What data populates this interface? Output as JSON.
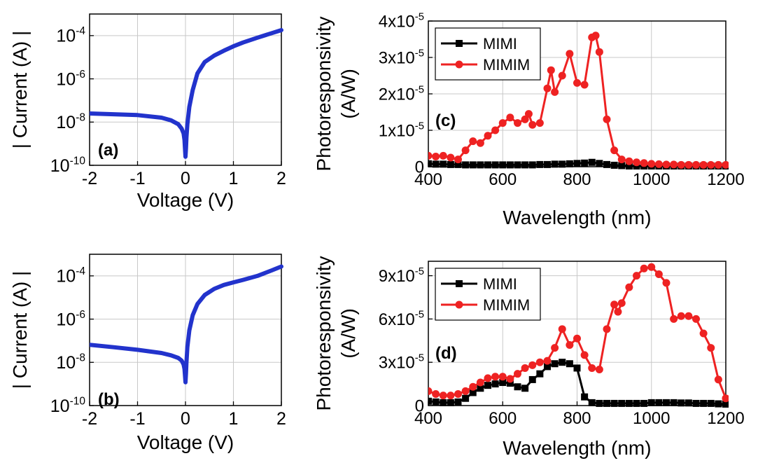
{
  "chart_data": [
    {
      "id": "a",
      "type": "line",
      "panel_label": "(a)",
      "xlabel": "Voltage (V)",
      "ylabel": "| Current (A) |",
      "yscale": "log",
      "xlim": [
        -2,
        2
      ],
      "ylim": [
        1e-10,
        0.001
      ],
      "x_ticks": [
        -2,
        -1,
        0,
        1,
        2
      ],
      "x_tick_labels": [
        "-2",
        "-1",
        "0",
        "1",
        "2"
      ],
      "y_ticks": [
        1e-10,
        1e-08,
        1e-06,
        0.0001
      ],
      "y_tick_labels": [
        {
          "base": "10",
          "exp": "-10"
        },
        {
          "base": "10",
          "exp": "-8"
        },
        {
          "base": "10",
          "exp": "-6"
        },
        {
          "base": "10",
          "exp": "-4"
        }
      ],
      "grid": true,
      "series": [
        {
          "color": "#2233cc",
          "x": [
            -2.0,
            -1.5,
            -1.0,
            -0.5,
            -0.3,
            -0.15,
            -0.08,
            -0.04,
            -0.02,
            -0.01,
            0.0,
            0.01,
            0.02,
            0.04,
            0.08,
            0.15,
            0.25,
            0.4,
            0.6,
            0.8,
            1.0,
            1.2,
            1.5,
            1.8,
            2.0
          ],
          "y": [
            2.5e-08,
            2.3e-08,
            2.1e-08,
            1.6e-08,
            1.2e-08,
            8e-09,
            5e-09,
            3e-09,
            1.5e-09,
            6e-10,
            2.5e-10,
            6e-10,
            2e-09,
            8e-09,
            5e-08,
            3e-07,
            1.8e-06,
            6e-06,
            1.2e-05,
            2e-05,
            3.2e-05,
            4.8e-05,
            8e-05,
            0.00013,
            0.00018
          ]
        }
      ]
    },
    {
      "id": "b",
      "type": "line",
      "panel_label": "(b)",
      "xlabel": "Voltage (V)",
      "ylabel": "| Current (A) |",
      "yscale": "log",
      "xlim": [
        -2,
        2
      ],
      "ylim": [
        1e-10,
        0.001
      ],
      "x_ticks": [
        -2,
        -1,
        0,
        1,
        2
      ],
      "x_tick_labels": [
        "-2",
        "-1",
        "0",
        "1",
        "2"
      ],
      "y_ticks": [
        1e-10,
        1e-08,
        1e-06,
        0.0001
      ],
      "y_tick_labels": [
        {
          "base": "10",
          "exp": "-10"
        },
        {
          "base": "10",
          "exp": "-8"
        },
        {
          "base": "10",
          "exp": "-6"
        },
        {
          "base": "10",
          "exp": "-4"
        }
      ],
      "grid": true,
      "series": [
        {
          "color": "#2233cc",
          "x": [
            -2.0,
            -1.5,
            -1.0,
            -0.5,
            -0.3,
            -0.15,
            -0.08,
            -0.04,
            -0.02,
            -0.01,
            0.0,
            0.01,
            0.02,
            0.04,
            0.08,
            0.15,
            0.25,
            0.4,
            0.6,
            0.8,
            1.0,
            1.2,
            1.5,
            1.8,
            2.0
          ],
          "y": [
            6.5e-08,
            5e-08,
            3.8e-08,
            2.7e-08,
            2.1e-08,
            1.6e-08,
            1.2e-08,
            8e-09,
            5e-09,
            2.5e-09,
            1.2e-09,
            3e-09,
            1e-08,
            5e-08,
            3e-07,
            1.5e-06,
            5e-06,
            1.3e-05,
            2.5e-05,
            3.8e-05,
            5e-05,
            6.5e-05,
            0.0001,
            0.00018,
            0.00027
          ]
        }
      ]
    },
    {
      "id": "c",
      "type": "line",
      "panel_label": "(c)",
      "xlabel": "Wavelength (nm)",
      "ylabel": "Photoresponsivity",
      "ylabel2": "(A/W)",
      "xlim": [
        400,
        1200
      ],
      "ylim": [
        0,
        4e-05
      ],
      "x_ticks": [
        400,
        600,
        800,
        1000,
        1200
      ],
      "x_tick_labels": [
        "400",
        "600",
        "800",
        "1000",
        "1200"
      ],
      "y_ticks": [
        0,
        1e-05,
        2e-05,
        3e-05,
        4e-05
      ],
      "y_tick_labels": [
        {
          "base": "0",
          "exp": ""
        },
        {
          "base": "1x10",
          "exp": "-5"
        },
        {
          "base": "2x10",
          "exp": "-5"
        },
        {
          "base": "3x10",
          "exp": "-5"
        },
        {
          "base": "4x10",
          "exp": "-5"
        }
      ],
      "grid": true,
      "legend_position": "top-left",
      "series": [
        {
          "name": "MIMI",
          "color": "#000000",
          "marker": "square",
          "x": [
            400,
            420,
            440,
            460,
            480,
            500,
            520,
            540,
            560,
            580,
            600,
            620,
            640,
            660,
            680,
            700,
            720,
            740,
            760,
            780,
            800,
            820,
            840,
            860,
            880,
            900,
            920,
            940,
            960,
            980,
            1000,
            1020,
            1040,
            1060,
            1080,
            1100,
            1120,
            1140,
            1160,
            1180,
            1200
          ],
          "y": [
            8e-07,
            7e-07,
            7e-07,
            6e-07,
            6e-07,
            5e-07,
            5e-07,
            5e-07,
            5e-07,
            5e-07,
            5e-07,
            5e-07,
            5e-07,
            5e-07,
            5e-07,
            6e-07,
            6e-07,
            7e-07,
            7e-07,
            8e-07,
            9e-07,
            1e-06,
            1.2e-06,
            9e-07,
            6e-07,
            4e-07,
            3e-07,
            2e-07,
            2e-07,
            2e-07,
            2e-07,
            2e-07,
            2e-07,
            2e-07,
            2e-07,
            2e-07,
            2e-07,
            2e-07,
            2e-07,
            2e-07,
            2e-07
          ]
        },
        {
          "name": "MIMIM",
          "color": "#ee2222",
          "marker": "circle",
          "x": [
            400,
            420,
            440,
            460,
            480,
            500,
            520,
            540,
            560,
            580,
            600,
            620,
            640,
            660,
            670,
            680,
            700,
            720,
            730,
            740,
            760,
            780,
            800,
            820,
            840,
            850,
            860,
            880,
            900,
            920,
            940,
            960,
            980,
            1000,
            1020,
            1040,
            1060,
            1080,
            1100,
            1120,
            1140,
            1160,
            1180,
            1200
          ],
          "y": [
            3e-06,
            2.8e-06,
            3e-06,
            2.5e-06,
            2e-06,
            4.5e-06,
            7e-06,
            6.5e-06,
            8.5e-06,
            1e-05,
            1.2e-05,
            1.35e-05,
            1.2e-05,
            1.3e-05,
            1.45e-05,
            1.15e-05,
            1.2e-05,
            2.15e-05,
            2.65e-05,
            2.05e-05,
            2.5e-05,
            3.1e-05,
            2.3e-05,
            2.25e-05,
            3.55e-05,
            3.6e-05,
            3.15e-05,
            1.3e-05,
            4.5e-06,
            2e-06,
            1.5e-06,
            1.2e-06,
            1e-06,
            8e-07,
            7e-07,
            6e-07,
            6e-07,
            5e-07,
            5e-07,
            5e-07,
            5e-07,
            5e-07,
            5e-07,
            5e-07
          ]
        }
      ]
    },
    {
      "id": "d",
      "type": "line",
      "panel_label": "(d)",
      "xlabel": "Wavelength (nm)",
      "ylabel": "Photoresponsivity",
      "ylabel2": "(A/W)",
      "xlim": [
        400,
        1200
      ],
      "ylim": [
        0,
        0.0001
      ],
      "x_ticks": [
        400,
        600,
        800,
        1000,
        1200
      ],
      "x_tick_labels": [
        "400",
        "600",
        "800",
        "1000",
        "1200"
      ],
      "y_ticks": [
        0,
        3e-05,
        6e-05,
        9e-05
      ],
      "y_tick_labels": [
        {
          "base": "0",
          "exp": ""
        },
        {
          "base": "3x10",
          "exp": "-5"
        },
        {
          "base": "6x10",
          "exp": "-5"
        },
        {
          "base": "9x10",
          "exp": "-5"
        }
      ],
      "grid": true,
      "legend_position": "top-left",
      "series": [
        {
          "name": "MIMI",
          "color": "#000000",
          "marker": "square",
          "x": [
            400,
            420,
            440,
            460,
            480,
            500,
            520,
            540,
            560,
            580,
            600,
            620,
            640,
            660,
            680,
            700,
            720,
            740,
            760,
            780,
            800,
            820,
            840,
            860,
            880,
            900,
            920,
            940,
            960,
            980,
            1000,
            1020,
            1040,
            1060,
            1080,
            1100,
            1120,
            1140,
            1160,
            1180,
            1200
          ],
          "y": [
            3e-06,
            2.5e-06,
            2e-06,
            2e-06,
            2.5e-06,
            5e-06,
            9e-06,
            1.2e-05,
            1.4e-05,
            1.5e-05,
            1.6e-05,
            1.55e-05,
            1.3e-05,
            1.2e-05,
            1.8e-05,
            2.2e-05,
            2.7e-05,
            2.9e-05,
            3e-05,
            2.9e-05,
            2.6e-05,
            6e-06,
            2e-06,
            1.5e-06,
            1.5e-06,
            1.5e-06,
            1.5e-06,
            1.5e-06,
            1.5e-06,
            1.5e-06,
            2e-06,
            2e-06,
            2e-06,
            2e-06,
            1.8e-06,
            1.8e-06,
            1.5e-06,
            1.5e-06,
            1.5e-06,
            1.2e-06,
            1e-06
          ]
        },
        {
          "name": "MIMIM",
          "color": "#ee2222",
          "marker": "circle",
          "x": [
            400,
            420,
            440,
            460,
            480,
            500,
            520,
            540,
            560,
            580,
            600,
            620,
            640,
            660,
            680,
            700,
            720,
            740,
            760,
            780,
            800,
            820,
            840,
            860,
            880,
            900,
            910,
            920,
            940,
            960,
            980,
            1000,
            1020,
            1040,
            1060,
            1080,
            1100,
            1120,
            1140,
            1160,
            1180,
            1200
          ],
          "y": [
            1e-05,
            8e-06,
            7e-06,
            7e-06,
            8e-06,
            1e-05,
            1.3e-05,
            1.6e-05,
            1.9e-05,
            2e-05,
            2e-05,
            1.85e-05,
            2.2e-05,
            2.6e-05,
            2.8e-05,
            3e-05,
            3.1e-05,
            4e-05,
            5.3e-05,
            4.2e-05,
            4.65e-05,
            3.5e-05,
            2.6e-05,
            2.5e-05,
            5.3e-05,
            7e-05,
            6.5e-05,
            7.1e-05,
            8.2e-05,
            9e-05,
            9.5e-05,
            9.6e-05,
            9.1e-05,
            8.5e-05,
            6e-05,
            6.2e-05,
            6.2e-05,
            6e-05,
            5e-05,
            4e-05,
            1.8e-05,
            5e-06
          ]
        }
      ]
    }
  ]
}
